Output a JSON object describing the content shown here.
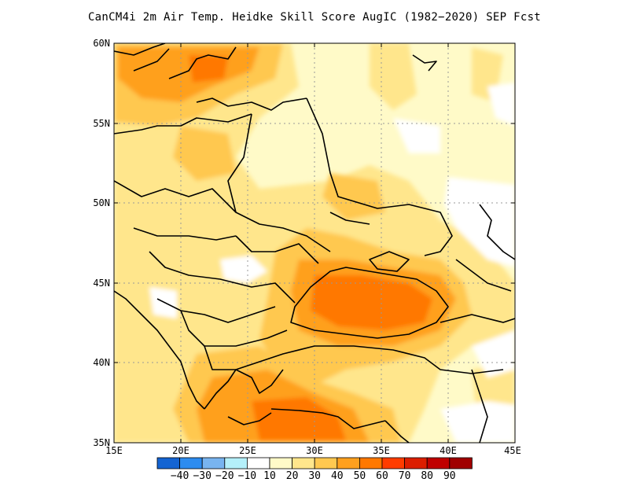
{
  "title": "CanCM4i  2m Air Temp. Heidke Skill Score AugIC (1982−2020) SEP Fcst",
  "latitude_labels": [
    "60N",
    "55N",
    "50N",
    "45N",
    "40N",
    "35N"
  ],
  "longitude_labels": [
    "15E",
    "20E",
    "25E",
    "30E",
    "35E",
    "40E",
    "45E"
  ],
  "colorbar": {
    "labels": [
      "−40",
      "−30",
      "−20",
      "−10",
      "10",
      "20",
      "30",
      "40",
      "50",
      "60",
      "70",
      "80",
      "90"
    ],
    "colors": [
      "#1464d2",
      "#2d8cf0",
      "#78b4f0",
      "#b4f0fa",
      "#ffffff",
      "#fffac8",
      "#ffe68c",
      "#ffc850",
      "#ffa01e",
      "#ff7800",
      "#ff3c00",
      "#dc1e00",
      "#c00000",
      "#a00000"
    ]
  },
  "map_extent": {
    "lon_min": 15,
    "lon_max": 45,
    "lat_min": 35,
    "lat_max": 60
  }
}
